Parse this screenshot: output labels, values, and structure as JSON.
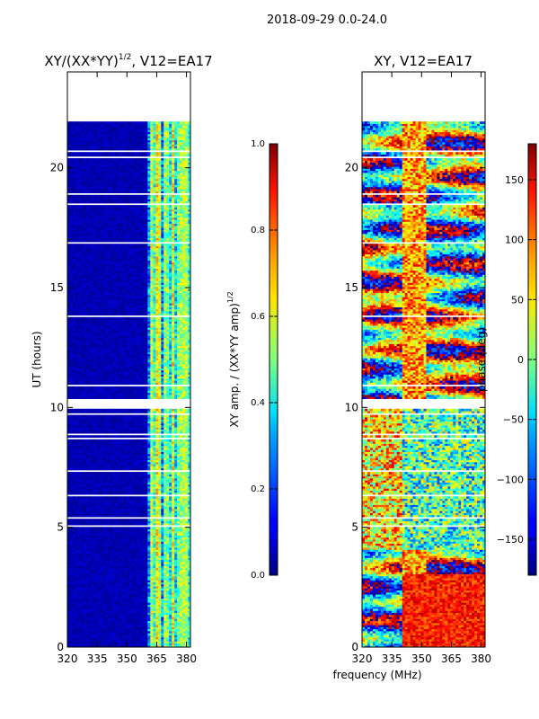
{
  "figure_title": "2018-09-29 0.0-24.0",
  "x_axis_label": "frequency (MHz)",
  "chart_data": [
    {
      "type": "heatmap",
      "title": "XY/(XX*YY)^1/2, V12=EA17",
      "title_main": "XY/(XX*YY)",
      "title_sup": "1/2",
      "title_rest": ", V12=EA17",
      "xlabel": "frequency (MHz)",
      "ylabel": "UT (hours)",
      "xlim": [
        320,
        382
      ],
      "ylim": [
        0,
        24
      ],
      "xticks": [
        320,
        335,
        350,
        365,
        380
      ],
      "yticks": [
        0,
        5,
        10,
        15,
        20
      ],
      "data_rows_ut": [
        0.0,
        21.9
      ],
      "gap_ut": [
        9.9,
        10.3
      ],
      "colorbar": {
        "label_main": "XY amp. / (XX*YY amp)",
        "label_sup": "1/2",
        "range": [
          0.0,
          1.0
        ],
        "ticks": [
          "0.0",
          "0.2",
          "0.4",
          "0.6",
          "0.8",
          "1.0"
        ],
        "colormap": "jet"
      }
    },
    {
      "type": "heatmap",
      "title": "XY, V12=EA17",
      "xlabel": "frequency (MHz)",
      "ylabel": "",
      "xlim": [
        320,
        382
      ],
      "ylim": [
        0,
        24
      ],
      "xticks": [
        320,
        335,
        350,
        365,
        380
      ],
      "yticks": [
        0,
        5,
        10,
        15,
        20
      ],
      "data_rows_ut": [
        0.0,
        21.9
      ],
      "gap_ut": [
        9.9,
        10.3
      ],
      "colorbar": {
        "label": "phase (deg)",
        "range": [
          -180,
          180
        ],
        "ticks": [
          "−150",
          "−100",
          "−50",
          "0",
          "50",
          "100",
          "150"
        ],
        "tick_values": [
          -150,
          -100,
          -50,
          0,
          50,
          100,
          150
        ],
        "colormap": "jet"
      }
    }
  ]
}
